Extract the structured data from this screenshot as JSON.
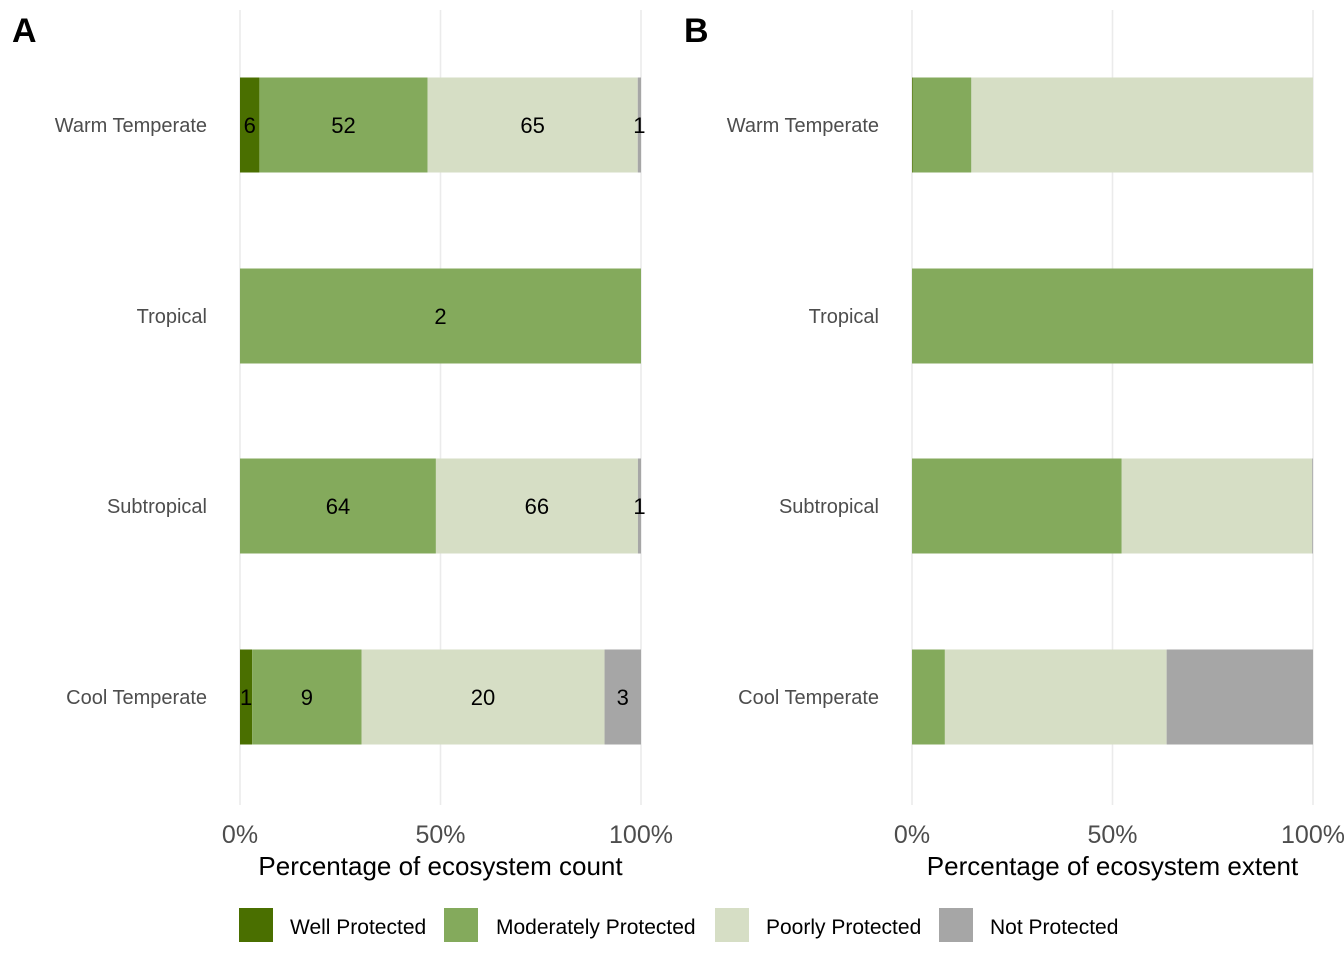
{
  "colors": {
    "Well Protected": "#4a6f00",
    "Moderately Protected": "#84aa5c",
    "Poorly Protected": "#d6dec5",
    "Not Protected": "#a6a6a6"
  },
  "legend": {
    "items": [
      "Well Protected",
      "Moderately Protected",
      "Poorly Protected",
      "Not Protected"
    ]
  },
  "chart_data": [
    {
      "panel": "A",
      "type": "bar",
      "orientation": "horizontal",
      "stacked": "percent",
      "xlabel": "Percentage of ecosystem count",
      "xticks": [
        "0%",
        "50%",
        "100%"
      ],
      "categories": [
        "Warm Temperate",
        "Tropical",
        "Subtropical",
        "Cool Temperate"
      ],
      "series": [
        {
          "name": "Well Protected",
          "values": [
            6,
            0,
            0,
            1
          ]
        },
        {
          "name": "Moderately Protected",
          "values": [
            52,
            2,
            64,
            9
          ]
        },
        {
          "name": "Poorly Protected",
          "values": [
            65,
            0,
            66,
            20
          ]
        },
        {
          "name": "Not Protected",
          "values": [
            1,
            0,
            1,
            3
          ]
        }
      ],
      "show_labels": true,
      "grid": true,
      "legend": "bottom"
    },
    {
      "panel": "B",
      "type": "bar",
      "orientation": "horizontal",
      "stacked": "percent",
      "xlabel": "Percentage of ecosystem extent",
      "xticks": [
        "0%",
        "50%",
        "100%"
      ],
      "categories": [
        "Warm Temperate",
        "Tropical",
        "Subtropical",
        "Cool Temperate"
      ],
      "series": [
        {
          "name": "Well Protected",
          "values": [
            0.2,
            0,
            0,
            0
          ]
        },
        {
          "name": "Moderately Protected",
          "values": [
            14.6,
            100,
            52.3,
            8.2
          ]
        },
        {
          "name": "Poorly Protected",
          "values": [
            85.2,
            0,
            47.5,
            55.3
          ]
        },
        {
          "name": "Not Protected",
          "values": [
            0,
            0,
            0.2,
            36.5
          ]
        }
      ],
      "show_labels": false,
      "grid": true,
      "legend": "bottom"
    }
  ]
}
